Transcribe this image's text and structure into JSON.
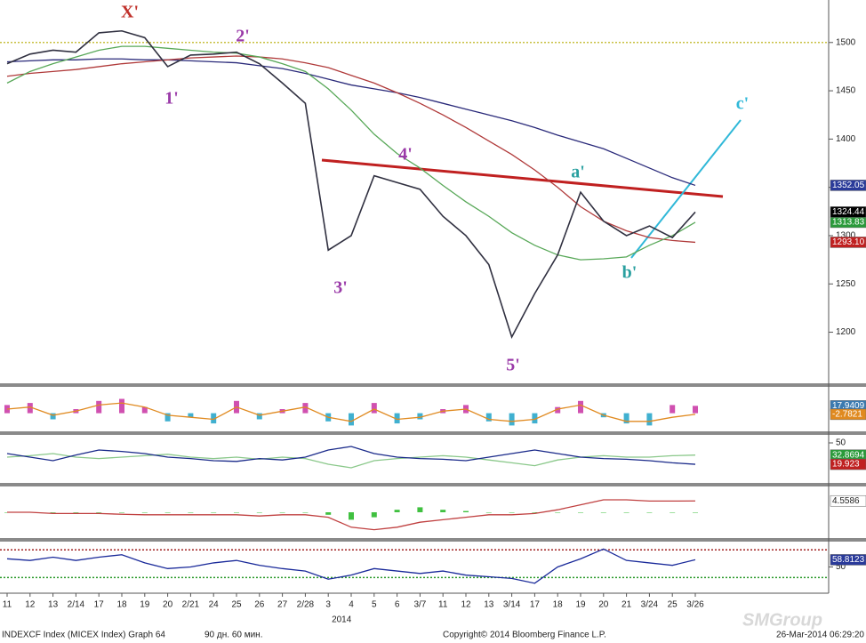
{
  "chart_data": [
    {
      "type": "line",
      "categories": [
        "11",
        "12",
        "13",
        "2/14",
        "17",
        "18",
        "19",
        "20",
        "2/21",
        "24",
        "25",
        "26",
        "27",
        "2/28",
        "3",
        "4",
        "5",
        "6",
        "3/7",
        "11",
        "12",
        "13",
        "3/14",
        "17",
        "18",
        "19",
        "20",
        "21",
        "3/24",
        "25",
        "3/26"
      ],
      "xlabel": "2014",
      "ylim": [
        1148,
        1544
      ],
      "yticks": [
        1200,
        1250,
        1300,
        1350,
        1400,
        1450,
        1500
      ],
      "hlines": [
        {
          "value": 1500,
          "color": "#c8c040"
        }
      ],
      "annotations": [
        {
          "text": "X'",
          "color": "#c0302a"
        },
        {
          "text": "1'",
          "color": "#9a3aa8"
        },
        {
          "text": "2'",
          "color": "#9a3aa8"
        },
        {
          "text": "3'",
          "color": "#9a3aa8"
        },
        {
          "text": "4'",
          "color": "#9a3aa8"
        },
        {
          "text": "5'",
          "color": "#9a3aa8"
        },
        {
          "text": "a'",
          "color": "#2aa0a0"
        },
        {
          "text": "b'",
          "color": "#2aa0a0"
        },
        {
          "text": "c'",
          "color": "#30b8d8"
        }
      ],
      "series": [
        {
          "style": "line",
          "color": "#2a2a7a",
          "tag_color": "#2a3a9a",
          "last_label": "1352.05",
          "values": [
            1480,
            1481,
            1482,
            1482,
            1483,
            1483,
            1482,
            1482,
            1481,
            1480,
            1479,
            1476,
            1473,
            1468,
            1462,
            1456,
            1452,
            1448,
            1443,
            1437,
            1431,
            1425,
            1419,
            1412,
            1404,
            1397,
            1390,
            1380,
            1370,
            1360,
            1352.05
          ]
        },
        {
          "style": "line",
          "color": "#b03a3a",
          "tag_color": "#c02020",
          "last_label": "1293.10",
          "values": [
            1465,
            1468,
            1470,
            1472,
            1475,
            1478,
            1480,
            1482,
            1484,
            1485,
            1486,
            1485,
            1483,
            1479,
            1474,
            1466,
            1458,
            1448,
            1437,
            1425,
            1412,
            1398,
            1384,
            1368,
            1350,
            1330,
            1315,
            1305,
            1298,
            1295,
            1293.1
          ]
        },
        {
          "style": "line",
          "color": "#58a858",
          "tag_color": "#2a9a3a",
          "last_label": "1313.83",
          "values": [
            1458,
            1470,
            1478,
            1485,
            1492,
            1496,
            1496,
            1494,
            1492,
            1490,
            1489,
            1485,
            1478,
            1470,
            1452,
            1430,
            1405,
            1385,
            1370,
            1352,
            1335,
            1320,
            1303,
            1290,
            1280,
            1275,
            1276,
            1278,
            1290,
            1300,
            1313.83
          ]
        },
        {
          "style": "line",
          "color": "#303040",
          "tag_color": "#000000",
          "last_label": "1324.44",
          "values": [
            1478,
            1488,
            1492,
            1490,
            1510,
            1512,
            1505,
            1475,
            1487,
            1488,
            1490,
            1478,
            1458,
            1437,
            1285,
            1300,
            1362,
            1355,
            1348,
            1320,
            1300,
            1270,
            1195,
            1240,
            1280,
            1345,
            1315,
            1300,
            1310,
            1298,
            1324.44
          ]
        }
      ]
    },
    {
      "type": "line",
      "ylim": [
        -40,
        60
      ],
      "series": [
        {
          "style": "bar",
          "color": "#d050b0",
          "color_down": "#40b0d0",
          "tag_color": "#3a7ab0",
          "last_label": "17.9409",
          "values": [
            20,
            25,
            -15,
            10,
            30,
            35,
            15,
            -20,
            -10,
            -25,
            30,
            -15,
            10,
            25,
            -20,
            -30,
            25,
            -25,
            -15,
            10,
            20,
            -20,
            -30,
            -25,
            15,
            30,
            -10,
            -25,
            -30,
            20,
            17.9409
          ]
        },
        {
          "style": "line",
          "color": "#e08a20",
          "tag_color": "#e08a20",
          "last_label": "-2.7821",
          "values": [
            10,
            15,
            -5,
            5,
            20,
            25,
            15,
            -5,
            -10,
            -15,
            15,
            -5,
            5,
            15,
            -10,
            -20,
            10,
            -15,
            -10,
            5,
            10,
            -15,
            -20,
            -15,
            10,
            20,
            -5,
            -20,
            -20,
            -10,
            -2.7821
          ]
        }
      ]
    },
    {
      "type": "line",
      "ylim": [
        -5,
        60
      ],
      "yticks": [
        50
      ],
      "series": [
        {
          "style": "line",
          "color": "#8ac88a",
          "tag_color": "#2a9a3a",
          "last_label": "32.8694",
          "values": [
            30,
            32,
            35,
            30,
            28,
            30,
            32,
            34,
            30,
            28,
            30,
            27,
            30,
            28,
            20,
            15,
            25,
            28,
            30,
            32,
            30,
            26,
            22,
            18,
            26,
            30,
            32,
            30,
            30,
            32,
            32.8694
          ]
        },
        {
          "style": "line",
          "color": "#1a2a8a",
          "tag_color": "#c02020",
          "last_label": "19.923",
          "values": [
            35,
            30,
            25,
            33,
            40,
            38,
            35,
            30,
            28,
            25,
            24,
            28,
            26,
            30,
            40,
            45,
            35,
            30,
            28,
            27,
            25,
            30,
            35,
            40,
            35,
            30,
            28,
            27,
            25,
            22,
            19.923
          ]
        }
      ]
    },
    {
      "type": "line",
      "ylim": [
        -10,
        10
      ],
      "series": [
        {
          "style": "bar",
          "color": "#40c040",
          "color_down": "#40c040",
          "values": [
            0,
            0,
            0,
            0,
            0,
            0,
            0,
            0,
            0,
            0,
            0,
            0,
            0,
            0,
            -1,
            -3,
            -2,
            1,
            2,
            1,
            0.5,
            0,
            0,
            0,
            0,
            0,
            0,
            0,
            0,
            0,
            0
          ]
        },
        {
          "style": "line",
          "color": "#c04040",
          "tag_color": "#ffffff",
          "last_label": "4.5586",
          "values": [
            0,
            0,
            -0.5,
            -0.5,
            -0.5,
            -0.8,
            -1,
            -1,
            -1,
            -1,
            -1,
            -1.5,
            -1,
            -1,
            -2,
            -6,
            -7,
            -6,
            -4,
            -3,
            -2,
            -1,
            -1,
            -0.5,
            1,
            3,
            5,
            5,
            4.5,
            4.5,
            4.5586
          ]
        }
      ]
    },
    {
      "type": "line",
      "ylim": [
        20,
        80
      ],
      "yticks": [
        50
      ],
      "hlines": [
        {
          "value": 71,
          "color": "#a02020"
        },
        {
          "value": 37,
          "color": "#2a9a2a"
        }
      ],
      "series": [
        {
          "style": "line",
          "color": "#1a2a9a",
          "tag_color": "#2a3a9a",
          "last_label": "58.8123",
          "values": [
            60,
            58,
            62,
            58,
            62,
            65,
            55,
            48,
            50,
            55,
            58,
            52,
            48,
            45,
            35,
            40,
            48,
            45,
            42,
            45,
            40,
            38,
            36,
            30,
            50,
            60,
            72,
            58,
            55,
            52,
            58.8123
          ]
        }
      ]
    }
  ],
  "footer": {
    "left": "INDEXCF Index (MICEX Index) Graph 64",
    "period": "90 дн. 60 мин.",
    "copyright": "Copyright© 2014 Bloomberg Finance L.P.",
    "timestamp": "26-Mar-2014 06:29:20"
  },
  "watermark": "SMGroup"
}
